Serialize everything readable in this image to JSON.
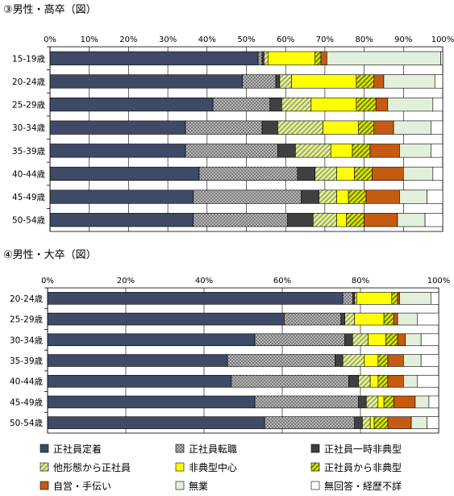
{
  "chart_data": [
    {
      "type": "bar",
      "orientation": "horizontal",
      "stacked": true,
      "title": "③男性・高卒（図）",
      "xlim": [
        0,
        100
      ],
      "x_ticks": [
        "0%",
        "10%",
        "20%",
        "30%",
        "40%",
        "50%",
        "60%",
        "70%",
        "80%",
        "90%",
        "100%"
      ],
      "grid": true,
      "categories": [
        "15-19歳",
        "20-24歳",
        "25-29歳",
        "30-34歳",
        "35-39歳",
        "40-44歳",
        "45-49歳",
        "50-54歳"
      ],
      "series": [
        {
          "name": "正社員定着",
          "values": [
            53.0,
            49.0,
            41.5,
            34.5,
            34.5,
            38.0,
            36.5,
            36.5
          ]
        },
        {
          "name": "正社員転職",
          "values": [
            1.0,
            8.5,
            14.5,
            19.5,
            23.5,
            25.0,
            27.5,
            24.0
          ]
        },
        {
          "name": "正社員一時非典型",
          "values": [
            0.5,
            1.0,
            3.0,
            4.0,
            4.5,
            4.5,
            4.5,
            6.5
          ]
        },
        {
          "name": "他形態から正社員",
          "values": [
            1.0,
            3.0,
            7.5,
            11.5,
            9.0,
            5.5,
            4.5,
            6.0
          ]
        },
        {
          "name": "非典型中心",
          "values": [
            12.0,
            16.5,
            11.5,
            9.0,
            5.5,
            4.5,
            3.0,
            2.5
          ]
        },
        {
          "name": "正社員から非典型",
          "values": [
            1.5,
            4.5,
            5.0,
            4.0,
            4.5,
            4.5,
            4.5,
            4.5
          ]
        },
        {
          "name": "自営・手伝い",
          "values": [
            1.5,
            2.5,
            3.0,
            5.0,
            7.5,
            8.0,
            8.5,
            8.5
          ]
        },
        {
          "name": "無業",
          "values": [
            29.0,
            13.0,
            11.5,
            9.5,
            8.0,
            7.5,
            7.0,
            7.0
          ]
        },
        {
          "name": "無回答・経歴不詳",
          "values": [
            0.5,
            2.0,
            2.5,
            3.0,
            3.0,
            2.5,
            4.0,
            4.5
          ]
        }
      ]
    },
    {
      "type": "bar",
      "orientation": "horizontal",
      "stacked": true,
      "title": "④男性・大卒（図）",
      "xlim": [
        0,
        100
      ],
      "x_ticks": [
        "0%",
        "20%",
        "40%",
        "60%",
        "80%",
        "100%"
      ],
      "grid": true,
      "categories": [
        "20-24歳",
        "25-29歳",
        "30-34歳",
        "35-39歳",
        "40-44歳",
        "45-49歳",
        "50-54歳"
      ],
      "series": [
        {
          "name": "正社員定着",
          "values": [
            75.5,
            60.5,
            53.0,
            46.0,
            47.0,
            53.0,
            55.5
          ]
        },
        {
          "name": "正社員転職",
          "values": [
            2.5,
            14.5,
            23.0,
            27.5,
            30.0,
            26.5,
            23.0
          ]
        },
        {
          "name": "正社員一時非典型",
          "values": [
            0.5,
            1.0,
            2.0,
            2.0,
            2.5,
            2.0,
            2.0
          ]
        },
        {
          "name": "他形態から正社員",
          "values": [
            0.5,
            2.5,
            4.0,
            5.5,
            3.0,
            3.0,
            2.0
          ]
        },
        {
          "name": "非典型中心",
          "values": [
            9.0,
            7.5,
            4.5,
            3.5,
            2.0,
            1.5,
            1.0
          ]
        },
        {
          "name": "正社員から非典型",
          "values": [
            1.5,
            2.5,
            3.0,
            2.5,
            2.5,
            2.5,
            3.5
          ]
        },
        {
          "name": "自営・手伝い",
          "values": [
            0.5,
            1.0,
            2.0,
            4.0,
            4.0,
            5.5,
            6.0
          ]
        },
        {
          "name": "無業",
          "values": [
            8.0,
            5.0,
            4.0,
            4.5,
            3.5,
            3.5,
            4.0
          ]
        },
        {
          "name": "無回答・経歴不詳",
          "values": [
            2.0,
            5.5,
            4.5,
            4.5,
            5.5,
            2.5,
            3.0
          ]
        }
      ]
    }
  ],
  "legend": {
    "placement": "bottom",
    "items": [
      {
        "label": "正社員定着",
        "color": "#3e4a66",
        "pattern": "solid"
      },
      {
        "label": "正社員転職",
        "color": "#a7a7a7",
        "pattern": "crosshatch"
      },
      {
        "label": "正社員一時非典型",
        "color": "#404040",
        "pattern": "solid"
      },
      {
        "label": "他形態から正社員",
        "color": "#bad06a",
        "pattern": "diagonal-stripes"
      },
      {
        "label": "非典型中心",
        "color": "#ffff00",
        "pattern": "solid"
      },
      {
        "label": "正社員から非典型",
        "color": "#7a9a10",
        "pattern": "diagonal-stripes"
      },
      {
        "label": "自営・手伝い",
        "color": "#c55a11",
        "pattern": "solid"
      },
      {
        "label": "無業",
        "color": "#e2efda",
        "pattern": "solid"
      },
      {
        "label": "無回答・経歴不詳",
        "color": "#ffffff",
        "pattern": "solid"
      }
    ]
  }
}
